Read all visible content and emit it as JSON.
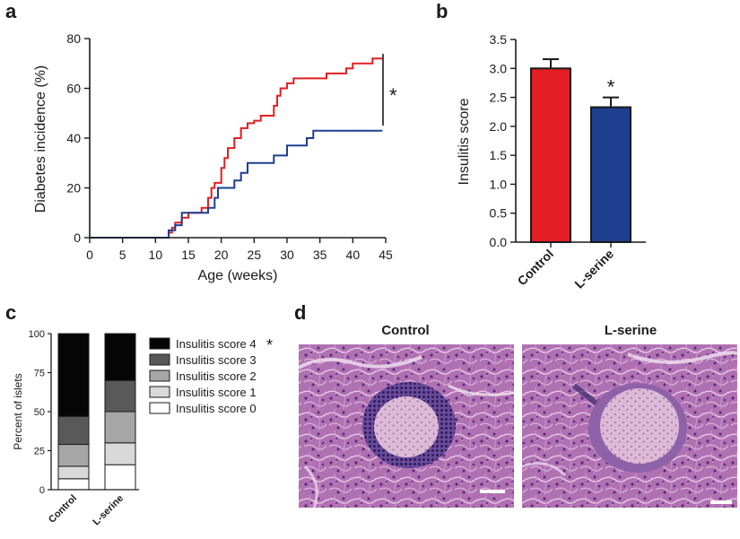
{
  "panel_labels": [
    "a",
    "b",
    "c",
    "d"
  ],
  "significance_mark": "*",
  "colors": {
    "control": "#e31e24",
    "lserine": "#1e3f8f",
    "axis": "#1a1a1a"
  },
  "chart_data": [
    {
      "id": "a",
      "type": "line",
      "xlabel": "Age (weeks)",
      "ylabel": "Diabetes incidence (%)",
      "xlim": [
        0,
        45
      ],
      "ylim": [
        0,
        80
      ],
      "xticks": [
        0,
        5,
        10,
        15,
        20,
        25,
        30,
        35,
        40,
        45
      ],
      "yticks": [
        0,
        20,
        40,
        60,
        80
      ],
      "annotation": "*",
      "series": [
        {
          "color": "#e31e24",
          "points": [
            [
              0,
              0
            ],
            [
              12,
              0
            ],
            [
              12,
              2
            ],
            [
              12.5,
              2
            ],
            [
              12.5,
              4
            ],
            [
              13,
              4
            ],
            [
              13,
              6
            ],
            [
              14,
              6
            ],
            [
              14,
              8
            ],
            [
              15,
              8
            ],
            [
              15,
              10
            ],
            [
              17,
              10
            ],
            [
              17,
              12
            ],
            [
              18,
              12
            ],
            [
              18,
              16
            ],
            [
              18.5,
              16
            ],
            [
              18.5,
              20
            ],
            [
              19,
              20
            ],
            [
              19,
              22
            ],
            [
              20,
              22
            ],
            [
              20,
              28
            ],
            [
              20.5,
              28
            ],
            [
              20.5,
              32
            ],
            [
              21,
              32
            ],
            [
              21,
              36
            ],
            [
              22,
              36
            ],
            [
              22,
              40
            ],
            [
              23,
              40
            ],
            [
              23,
              44
            ],
            [
              24,
              44
            ],
            [
              24,
              46
            ],
            [
              25,
              46
            ],
            [
              25,
              47
            ],
            [
              26,
              47
            ],
            [
              26,
              49
            ],
            [
              28,
              49
            ],
            [
              28,
              53
            ],
            [
              28.5,
              53
            ],
            [
              28.5,
              57
            ],
            [
              29,
              57
            ],
            [
              29,
              60
            ],
            [
              30,
              60
            ],
            [
              30,
              62
            ],
            [
              31,
              62
            ],
            [
              31,
              64
            ],
            [
              36,
              64
            ],
            [
              36,
              66
            ],
            [
              39,
              66
            ],
            [
              39,
              68
            ],
            [
              40,
              68
            ],
            [
              40,
              70
            ],
            [
              43,
              70
            ],
            [
              43,
              72
            ],
            [
              44.5,
              72
            ]
          ]
        },
        {
          "color": "#1e3f8f",
          "points": [
            [
              0,
              0
            ],
            [
              12,
              0
            ],
            [
              12,
              3
            ],
            [
              13,
              3
            ],
            [
              13,
              5
            ],
            [
              14,
              5
            ],
            [
              14,
              10
            ],
            [
              18,
              10
            ],
            [
              18,
              12
            ],
            [
              19,
              12
            ],
            [
              19,
              16
            ],
            [
              19.5,
              16
            ],
            [
              19.5,
              20
            ],
            [
              22,
              20
            ],
            [
              22,
              23
            ],
            [
              23,
              23
            ],
            [
              23,
              26
            ],
            [
              24,
              26
            ],
            [
              24,
              30
            ],
            [
              28,
              30
            ],
            [
              28,
              33
            ],
            [
              30,
              33
            ],
            [
              30,
              37
            ],
            [
              33,
              37
            ],
            [
              33,
              40
            ],
            [
              34,
              40
            ],
            [
              34,
              43
            ],
            [
              44.5,
              43
            ]
          ]
        }
      ]
    },
    {
      "id": "b",
      "type": "bar",
      "ylabel": "Insulitis score",
      "categories": [
        "Control",
        "L-serine"
      ],
      "values": [
        3.0,
        2.33
      ],
      "errors": [
        0.16,
        0.17
      ],
      "colors": [
        "#e31e24",
        "#1e3f8f"
      ],
      "ylim": [
        0,
        3.5
      ],
      "yticks": [
        "0.0",
        "0.5",
        "1.0",
        "1.5",
        "2.0",
        "2.5",
        "3.0",
        "3.5"
      ],
      "annotation": "*"
    },
    {
      "id": "c",
      "type": "bar",
      "stacked": true,
      "ylabel": "Percent of islets",
      "categories": [
        "Control",
        "L-serine"
      ],
      "ylim": [
        0,
        100
      ],
      "yticks": [
        0,
        25,
        50,
        75,
        100
      ],
      "series": [
        {
          "name": "Insulitis score 0",
          "color": "#ffffff",
          "values": [
            7,
            16
          ]
        },
        {
          "name": "Insulitis score 1",
          "color": "#d9d9d9",
          "values": [
            8,
            14
          ]
        },
        {
          "name": "Insulitis score 2",
          "color": "#a6a6a6",
          "values": [
            14,
            20
          ]
        },
        {
          "name": "Insulitis score 3",
          "color": "#595959",
          "values": [
            18,
            20
          ]
        },
        {
          "name": "Insulitis score 4",
          "color": "#050505",
          "values": [
            53,
            30
          ]
        }
      ],
      "legend_order": [
        "Insulitis score 4",
        "Insulitis score 3",
        "Insulitis score 2",
        "Insulitis score 1",
        "Insulitis score 0"
      ],
      "legend_mark": "*",
      "legend": "right"
    }
  ],
  "micrographs": [
    {
      "title": "Control"
    },
    {
      "title": "L-serine"
    }
  ]
}
